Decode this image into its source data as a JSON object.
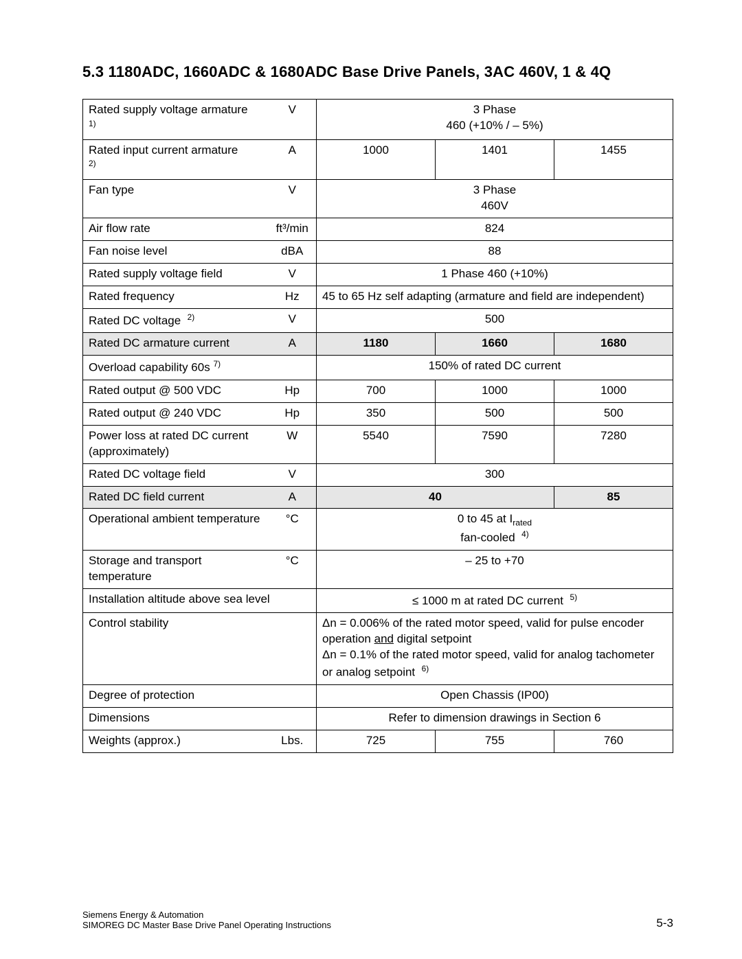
{
  "section_title": "5.3   1180ADC, 1660ADC & 1680ADC Base Drive Panels, 3AC 460V, 1 & 4Q",
  "rows": {
    "supply_voltage_arm": {
      "label": "Rated supply voltage armature",
      "note": "1)",
      "unit": "V",
      "value_line1": "3 Phase",
      "value_line2": "460 (+10% / – 5%)"
    },
    "input_current_arm": {
      "label": "Rated input current armature",
      "note": "2)",
      "unit": "A",
      "v1": "1000",
      "v2": "1401",
      "v3": "1455"
    },
    "fan_type": {
      "label": "Fan type",
      "unit": "V",
      "value_line1": "3 Phase",
      "value_line2": "460V"
    },
    "air_flow": {
      "label": "Air flow rate",
      "unit": "ft³/min",
      "value": "824"
    },
    "fan_noise": {
      "label": "Fan noise level",
      "unit": "dBA",
      "value": "88"
    },
    "supply_voltage_field": {
      "label": "Rated supply voltage field",
      "unit": "V",
      "value": "1 Phase 460 (+10%)"
    },
    "rated_freq": {
      "label": "Rated frequency",
      "unit": "Hz",
      "value": "45 to 65 Hz self adapting (armature and field are independent)"
    },
    "dc_voltage": {
      "label": "Rated DC voltage",
      "note": "2)",
      "unit": "V",
      "value": "500"
    },
    "dc_arm_current": {
      "label": "Rated DC armature current",
      "unit": "A",
      "v1": "1180",
      "v2": "1660",
      "v3": "1680"
    },
    "overload": {
      "label": "Overload capability 60s",
      "note": "7)",
      "value": "150% of rated DC current"
    },
    "out_500": {
      "label": "Rated output @ 500 VDC",
      "unit": "Hp",
      "v1": "700",
      "v2": "1000",
      "v3": "1000"
    },
    "out_240": {
      "label": "Rated output @ 240 VDC",
      "unit": "Hp",
      "v1": "350",
      "v2": "500",
      "v3": "500"
    },
    "power_loss": {
      "label": "Power loss at rated DC current (approximately)",
      "unit": "W",
      "v1": "5540",
      "v2": "7590",
      "v3": "7280"
    },
    "dc_volt_field": {
      "label": "Rated DC voltage field",
      "unit": "V",
      "value": "300"
    },
    "dc_field_current": {
      "label": "Rated DC field current",
      "unit": "A",
      "v12": "40",
      "v3": "85"
    },
    "op_ambient": {
      "label": "Operational ambient temperature",
      "unit": "°C",
      "line1_pre": "0 to 45 at I",
      "line1_sub": "rated",
      "line2_pre": "fan-cooled",
      "line2_note": "4)"
    },
    "storage_temp": {
      "label": "Storage and transport temperature",
      "unit": "°C",
      "value": "– 25 to +70"
    },
    "altitude": {
      "label": "Installation altitude above sea level",
      "pre": "≤ 1000 m at rated DC current",
      "note": "5)"
    },
    "control_stability": {
      "label": "Control stability",
      "l1_pre": "Δn = 0.006% of the rated motor speed, valid for pulse encoder operation ",
      "l1_und": "and",
      "l1_post": " digital setpoint",
      "l2_pre": "Δn = 0.1% of the rated motor speed, valid for analog tachometer or analog setpoint",
      "l2_note": "6)"
    },
    "protection": {
      "label": "Degree of protection",
      "value": "Open Chassis (IP00)"
    },
    "dimensions": {
      "label": "Dimensions",
      "value": "Refer to dimension drawings in Section 6"
    },
    "weights": {
      "label": "Weights (approx.)",
      "unit": "Lbs.",
      "v1": "725",
      "v2": "755",
      "v3": "760"
    }
  },
  "footer": {
    "line1": "Siemens Energy & Automation",
    "line2": "SIMOREG DC Master Base Drive Panel   Operating Instructions",
    "page": "5-3"
  }
}
